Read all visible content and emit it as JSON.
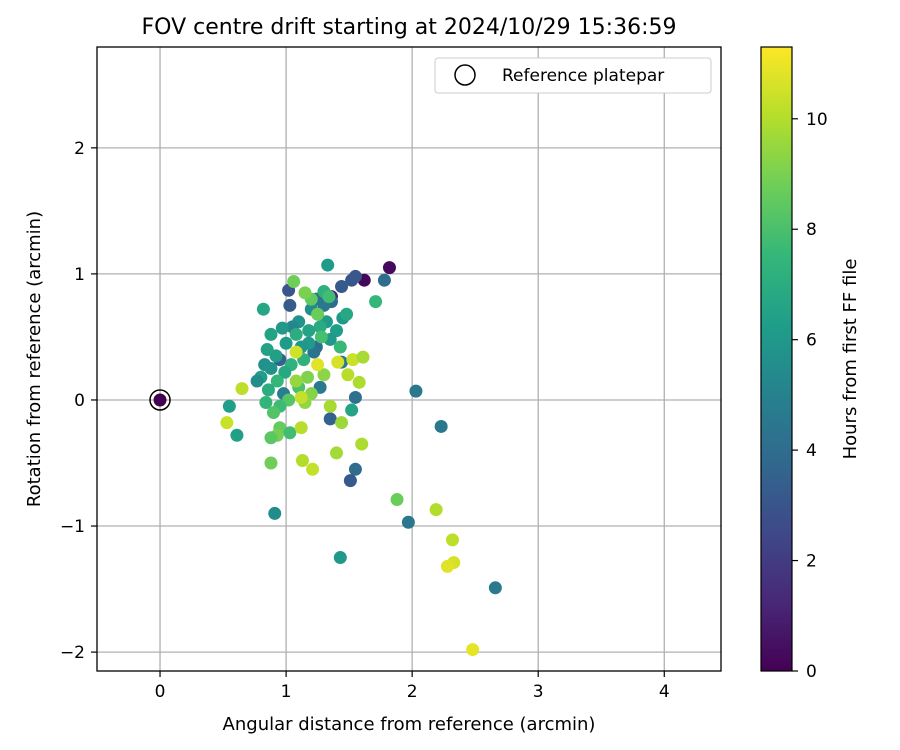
{
  "chart_data": {
    "type": "scatter",
    "title": "FOV centre drift starting at 2024/10/29 15:36:59",
    "xlabel": "Angular distance from reference (arcmin)",
    "ylabel": "Rotation from reference (arcmin)",
    "xlim": [
      -0.5,
      4.45
    ],
    "ylim": [
      -2.15,
      2.8
    ],
    "xticks": [
      0,
      1,
      2,
      3,
      4
    ],
    "yticks": [
      -2,
      -1,
      0,
      1,
      2
    ],
    "xtick_labels": [
      "0",
      "1",
      "2",
      "3",
      "4"
    ],
    "ytick_labels": [
      "−2",
      "−1",
      "0",
      "1",
      "2"
    ],
    "grid": true,
    "legend": {
      "position": "top-right",
      "entries": [
        "Reference platepar"
      ]
    },
    "reference_point": {
      "x": 0,
      "y": 0,
      "hours": 0
    },
    "colorbar": {
      "label": "Hours from first FF file",
      "colormap": "viridis",
      "min": 0,
      "max": 11.3,
      "ticks": [
        0,
        2,
        4,
        6,
        8,
        10
      ],
      "tick_labels": [
        "0",
        "2",
        "4",
        "6",
        "8",
        "10"
      ]
    },
    "colormap_stops": [
      "#440154",
      "#482878",
      "#3e4989",
      "#31688e",
      "#26828e",
      "#1f9e89",
      "#35b779",
      "#6ece58",
      "#b5de2b",
      "#fde725"
    ],
    "points": [
      {
        "x": 1.62,
        "y": 0.95,
        "hours": 0.2
      },
      {
        "x": 1.82,
        "y": 1.05,
        "hours": 0.3
      },
      {
        "x": 1.36,
        "y": 0.82,
        "hours": 1.2
      },
      {
        "x": 1.52,
        "y": 0.95,
        "hours": 3.0
      },
      {
        "x": 1.55,
        "y": 0.98,
        "hours": 3.1
      },
      {
        "x": 1.44,
        "y": 0.9,
        "hours": 3.2
      },
      {
        "x": 1.02,
        "y": 0.87,
        "hours": 3.0
      },
      {
        "x": 1.03,
        "y": 0.75,
        "hours": 3.3
      },
      {
        "x": 1.78,
        "y": 0.95,
        "hours": 4.0
      },
      {
        "x": 1.36,
        "y": 0.78,
        "hours": 4.0
      },
      {
        "x": 1.24,
        "y": 0.8,
        "hours": 4.2
      },
      {
        "x": 1.3,
        "y": 0.75,
        "hours": 4.5
      },
      {
        "x": 0.95,
        "y": 0.32,
        "hours": 3.5
      },
      {
        "x": 1.24,
        "y": 0.42,
        "hours": 4.0
      },
      {
        "x": 1.22,
        "y": 0.38,
        "hours": 4.3
      },
      {
        "x": 1.44,
        "y": 0.3,
        "hours": 4.5
      },
      {
        "x": 1.27,
        "y": 0.1,
        "hours": 4.6
      },
      {
        "x": 0.98,
        "y": 0.05,
        "hours": 4.8
      },
      {
        "x": 1.55,
        "y": 0.02,
        "hours": 4.2
      },
      {
        "x": 1.35,
        "y": -0.15,
        "hours": 3.5
      },
      {
        "x": 1.55,
        "y": -0.55,
        "hours": 4.0
      },
      {
        "x": 1.51,
        "y": -0.64,
        "hours": 3.2
      },
      {
        "x": 2.03,
        "y": 0.07,
        "hours": 4.5
      },
      {
        "x": 2.23,
        "y": -0.21,
        "hours": 4.5
      },
      {
        "x": 1.97,
        "y": -0.97,
        "hours": 4.5
      },
      {
        "x": 2.66,
        "y": -1.49,
        "hours": 4.6
      },
      {
        "x": 0.91,
        "y": -0.9,
        "hours": 5.5
      },
      {
        "x": 1.43,
        "y": -1.25,
        "hours": 6.0
      },
      {
        "x": 1.33,
        "y": 1.07,
        "hours": 6.2
      },
      {
        "x": 1.2,
        "y": 0.72,
        "hours": 5.5
      },
      {
        "x": 1.1,
        "y": 0.62,
        "hours": 5.8
      },
      {
        "x": 1.05,
        "y": 0.58,
        "hours": 5.2
      },
      {
        "x": 0.97,
        "y": 0.57,
        "hours": 6.0
      },
      {
        "x": 0.88,
        "y": 0.52,
        "hours": 6.5
      },
      {
        "x": 1.45,
        "y": 0.65,
        "hours": 6.0
      },
      {
        "x": 1.48,
        "y": 0.68,
        "hours": 6.8
      },
      {
        "x": 1.4,
        "y": 0.55,
        "hours": 6.3
      },
      {
        "x": 1.35,
        "y": 0.48,
        "hours": 6.0
      },
      {
        "x": 1.18,
        "y": 0.45,
        "hours": 6.1
      },
      {
        "x": 1.12,
        "y": 0.42,
        "hours": 5.9
      },
      {
        "x": 1.0,
        "y": 0.45,
        "hours": 6.2
      },
      {
        "x": 0.92,
        "y": 0.35,
        "hours": 6.4
      },
      {
        "x": 0.85,
        "y": 0.4,
        "hours": 6.5
      },
      {
        "x": 0.83,
        "y": 0.28,
        "hours": 5.7
      },
      {
        "x": 0.88,
        "y": 0.25,
        "hours": 5.8
      },
      {
        "x": 0.8,
        "y": 0.18,
        "hours": 6.3
      },
      {
        "x": 0.77,
        "y": 0.15,
        "hours": 5.5
      },
      {
        "x": 0.82,
        "y": 0.72,
        "hours": 6.7
      },
      {
        "x": 0.55,
        "y": -0.05,
        "hours": 6.3
      },
      {
        "x": 0.61,
        "y": -0.28,
        "hours": 6.4
      },
      {
        "x": 1.52,
        "y": -0.08,
        "hours": 6.6
      },
      {
        "x": 1.32,
        "y": 0.62,
        "hours": 6.2
      },
      {
        "x": 1.27,
        "y": 0.58,
        "hours": 6.9
      },
      {
        "x": 1.18,
        "y": 0.55,
        "hours": 6.6
      },
      {
        "x": 1.08,
        "y": 0.52,
        "hours": 7.0
      },
      {
        "x": 1.14,
        "y": 0.32,
        "hours": 7.2
      },
      {
        "x": 1.04,
        "y": 0.28,
        "hours": 7.3
      },
      {
        "x": 0.99,
        "y": 0.22,
        "hours": 6.8
      },
      {
        "x": 0.93,
        "y": 0.15,
        "hours": 7.5
      },
      {
        "x": 0.86,
        "y": 0.08,
        "hours": 7.0
      },
      {
        "x": 0.84,
        "y": -0.02,
        "hours": 7.4
      },
      {
        "x": 1.3,
        "y": 0.86,
        "hours": 7.2
      },
      {
        "x": 1.34,
        "y": 0.82,
        "hours": 7.8
      },
      {
        "x": 1.71,
        "y": 0.78,
        "hours": 7.5
      },
      {
        "x": 1.2,
        "y": 0.8,
        "hours": 8.5
      },
      {
        "x": 1.28,
        "y": 0.5,
        "hours": 7.9
      },
      {
        "x": 1.43,
        "y": 0.42,
        "hours": 7.6
      },
      {
        "x": 1.1,
        "y": 0.1,
        "hours": 8.0
      },
      {
        "x": 1.02,
        "y": 0.0,
        "hours": 8.3
      },
      {
        "x": 0.95,
        "y": -0.05,
        "hours": 7.7
      },
      {
        "x": 0.9,
        "y": -0.1,
        "hours": 8.2
      },
      {
        "x": 0.95,
        "y": -0.22,
        "hours": 8.6
      },
      {
        "x": 1.03,
        "y": -0.26,
        "hours": 7.8
      },
      {
        "x": 0.93,
        "y": -0.28,
        "hours": 8.9
      },
      {
        "x": 0.88,
        "y": -0.3,
        "hours": 8.4
      },
      {
        "x": 0.88,
        "y": -0.5,
        "hours": 8.8
      },
      {
        "x": 1.88,
        "y": -0.79,
        "hours": 8.7
      },
      {
        "x": 1.06,
        "y": 0.94,
        "hours": 8.8
      },
      {
        "x": 1.15,
        "y": 0.85,
        "hours": 9.0
      },
      {
        "x": 1.25,
        "y": 0.68,
        "hours": 8.7
      },
      {
        "x": 1.3,
        "y": 0.2,
        "hours": 9.3
      },
      {
        "x": 1.17,
        "y": 0.18,
        "hours": 9.1
      },
      {
        "x": 1.08,
        "y": 0.15,
        "hours": 9.5
      },
      {
        "x": 1.2,
        "y": 0.05,
        "hours": 9.2
      },
      {
        "x": 1.15,
        "y": -0.02,
        "hours": 9.4
      },
      {
        "x": 1.44,
        "y": -0.18,
        "hours": 9.6
      },
      {
        "x": 1.35,
        "y": -0.05,
        "hours": 9.8
      },
      {
        "x": 1.4,
        "y": -0.42,
        "hours": 9.7
      },
      {
        "x": 1.6,
        "y": -0.35,
        "hours": 9.9
      },
      {
        "x": 1.13,
        "y": -0.48,
        "hours": 10.0
      },
      {
        "x": 1.21,
        "y": -0.55,
        "hours": 10.3
      },
      {
        "x": 1.12,
        "y": -0.22,
        "hours": 10.1
      },
      {
        "x": 0.53,
        "y": -0.18,
        "hours": 10.4
      },
      {
        "x": 0.65,
        "y": 0.09,
        "hours": 10.2
      },
      {
        "x": 1.58,
        "y": 0.14,
        "hours": 9.9
      },
      {
        "x": 1.49,
        "y": 0.2,
        "hours": 10.1
      },
      {
        "x": 1.53,
        "y": 0.32,
        "hours": 10.4
      },
      {
        "x": 1.61,
        "y": 0.34,
        "hours": 9.8
      },
      {
        "x": 1.41,
        "y": 0.3,
        "hours": 10.6
      },
      {
        "x": 1.12,
        "y": 0.02,
        "hours": 10.3
      },
      {
        "x": 1.25,
        "y": 0.28,
        "hours": 10.8
      },
      {
        "x": 1.08,
        "y": 0.38,
        "hours": 10.5
      },
      {
        "x": 2.19,
        "y": -0.87,
        "hours": 10.0
      },
      {
        "x": 2.32,
        "y": -1.11,
        "hours": 10.2
      },
      {
        "x": 2.33,
        "y": -1.29,
        "hours": 10.6
      },
      {
        "x": 2.28,
        "y": -1.32,
        "hours": 10.8
      },
      {
        "x": 2.48,
        "y": -1.98,
        "hours": 10.9
      }
    ]
  }
}
